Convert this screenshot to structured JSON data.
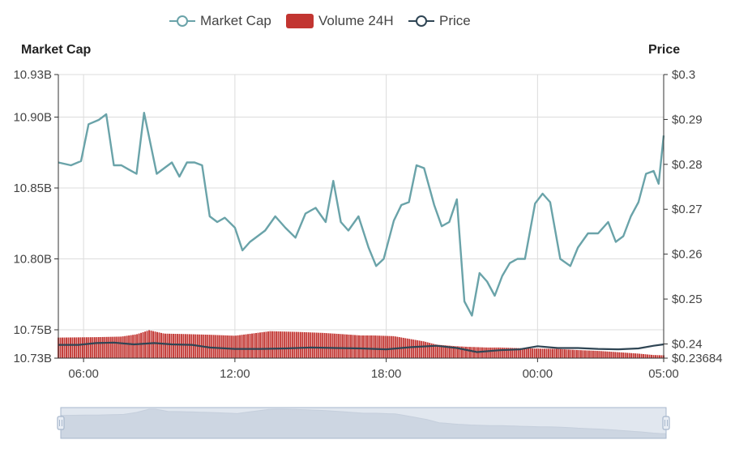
{
  "legend": {
    "market_cap": "Market Cap",
    "volume": "Volume 24H",
    "price": "Price"
  },
  "axes": {
    "left_name": "Market Cap",
    "right_name": "Price"
  },
  "colors": {
    "market_cap": "#6aa3a9",
    "volume": "#c23531",
    "price": "#2f4554",
    "grid": "#dcdcdc",
    "axis": "#333333",
    "zoom_fill": "#d2dbe8",
    "zoom_handle": "#a7b7cc"
  },
  "chart_data": {
    "type": "line",
    "title": "",
    "x_time_labels": [
      "06:00",
      "12:00",
      "18:00",
      "00:00",
      "05:00"
    ],
    "x_range_hours": [
      0,
      24
    ],
    "x_time_label_hours": [
      1.0,
      7.0,
      13.0,
      19.0,
      24.0
    ],
    "left_axis": {
      "name": "Market Cap",
      "range": [
        10.73,
        10.93
      ],
      "ticks": [
        {
          "value": 10.73,
          "label": "10.73B"
        },
        {
          "value": 10.75,
          "label": "10.75B"
        },
        {
          "value": 10.8,
          "label": "10.80B"
        },
        {
          "value": 10.85,
          "label": "10.85B"
        },
        {
          "value": 10.9,
          "label": "10.90B"
        },
        {
          "value": 10.93,
          "label": "10.93B"
        }
      ]
    },
    "right_axis": {
      "name": "Price",
      "range": [
        0.23684,
        0.3
      ],
      "ticks": [
        {
          "value": 0.23684,
          "label": "$0.23684"
        },
        {
          "value": 0.24,
          "label": "$0.24"
        },
        {
          "value": 0.25,
          "label": "$0.25"
        },
        {
          "value": 0.26,
          "label": "$0.26"
        },
        {
          "value": 0.27,
          "label": "$0.27"
        },
        {
          "value": 0.28,
          "label": "$0.28"
        },
        {
          "value": 0.29,
          "label": "$0.29"
        },
        {
          "value": 0.3,
          "label": "$0.3"
        }
      ]
    },
    "series": [
      {
        "name": "Market Cap",
        "axis": "left",
        "x": [
          0,
          0.5,
          0.9,
          1.2,
          1.6,
          1.9,
          2.2,
          2.5,
          2.8,
          3.1,
          3.4,
          3.9,
          4.2,
          4.5,
          4.8,
          5.1,
          5.4,
          5.7,
          6.0,
          6.3,
          6.6,
          7.0,
          7.3,
          7.6,
          7.9,
          8.2,
          8.6,
          9.0,
          9.4,
          9.8,
          10.2,
          10.6,
          10.9,
          11.2,
          11.5,
          11.9,
          12.3,
          12.6,
          12.9,
          13.3,
          13.6,
          13.9,
          14.2,
          14.5,
          14.9,
          15.2,
          15.5,
          15.8,
          16.1,
          16.4,
          16.7,
          17.0,
          17.3,
          17.6,
          17.9,
          18.2,
          18.5,
          18.9,
          19.2,
          19.5,
          19.9,
          20.3,
          20.6,
          21.0,
          21.4,
          21.8,
          22.1,
          22.4,
          22.7,
          23.0,
          23.3,
          23.6,
          23.8,
          24.0
        ],
        "values": [
          10.868,
          10.866,
          10.869,
          10.895,
          10.898,
          10.902,
          10.866,
          10.866,
          10.863,
          10.86,
          10.903,
          10.86,
          10.864,
          10.868,
          10.858,
          10.868,
          10.868,
          10.866,
          10.83,
          10.826,
          10.829,
          10.822,
          10.806,
          10.812,
          10.816,
          10.82,
          10.83,
          10.822,
          10.815,
          10.832,
          10.836,
          10.826,
          10.855,
          10.826,
          10.82,
          10.83,
          10.808,
          10.795,
          10.8,
          10.827,
          10.838,
          10.84,
          10.866,
          10.864,
          10.838,
          10.823,
          10.826,
          10.842,
          10.77,
          10.76,
          10.79,
          10.784,
          10.774,
          10.788,
          10.797,
          10.8,
          10.8,
          10.839,
          10.846,
          10.84,
          10.8,
          10.795,
          10.808,
          10.818,
          10.818,
          10.826,
          10.812,
          10.816,
          10.83,
          10.84,
          10.86,
          10.862,
          10.853,
          10.887
        ]
      },
      {
        "name": "Price",
        "axis": "right",
        "x": [
          0,
          0.8,
          1.5,
          2.2,
          3.0,
          3.8,
          4.5,
          5.3,
          6.0,
          7.0,
          8.0,
          9.0,
          10.0,
          11.0,
          12.0,
          13.0,
          14.0,
          15.0,
          15.8,
          16.6,
          17.5,
          18.3,
          19.0,
          19.8,
          20.6,
          21.4,
          22.2,
          23.0,
          23.6,
          24.0
        ],
        "values": [
          0.2398,
          0.2398,
          0.2402,
          0.2403,
          0.2399,
          0.2402,
          0.2399,
          0.2398,
          0.2392,
          0.2389,
          0.2389,
          0.239,
          0.2392,
          0.2391,
          0.239,
          0.2388,
          0.2393,
          0.2396,
          0.2391,
          0.2382,
          0.2386,
          0.2388,
          0.2395,
          0.2391,
          0.2391,
          0.2389,
          0.2388,
          0.239,
          0.2396,
          0.2399
        ]
      },
      {
        "name": "Volume 24H",
        "type": "bar",
        "axis": "left",
        "x": [
          0,
          1.5,
          2.5,
          3.1,
          3.6,
          4.2,
          5.0,
          6.0,
          7.0,
          8.4,
          9.5,
          10.5,
          11.2,
          12.0,
          12.5,
          13.3,
          14.5,
          15.0,
          15.7,
          16.2,
          17.0,
          17.5,
          18.0,
          18.8,
          19.8,
          20.5,
          21.5,
          22.2,
          23.0,
          23.6,
          24.0
        ],
        "values": [
          10.7445,
          10.7448,
          10.7452,
          10.7468,
          10.7497,
          10.7473,
          10.747,
          10.7465,
          10.7458,
          10.749,
          10.7485,
          10.7478,
          10.747,
          10.746,
          10.746,
          10.7455,
          10.7418,
          10.7395,
          10.7385,
          10.738,
          10.7375,
          10.7375,
          10.7372,
          10.7368,
          10.7365,
          10.7358,
          10.735,
          10.7342,
          10.7332,
          10.7322,
          10.732
        ]
      }
    ],
    "zoom_slider": {
      "start_percent": 0,
      "end_percent": 100
    }
  }
}
